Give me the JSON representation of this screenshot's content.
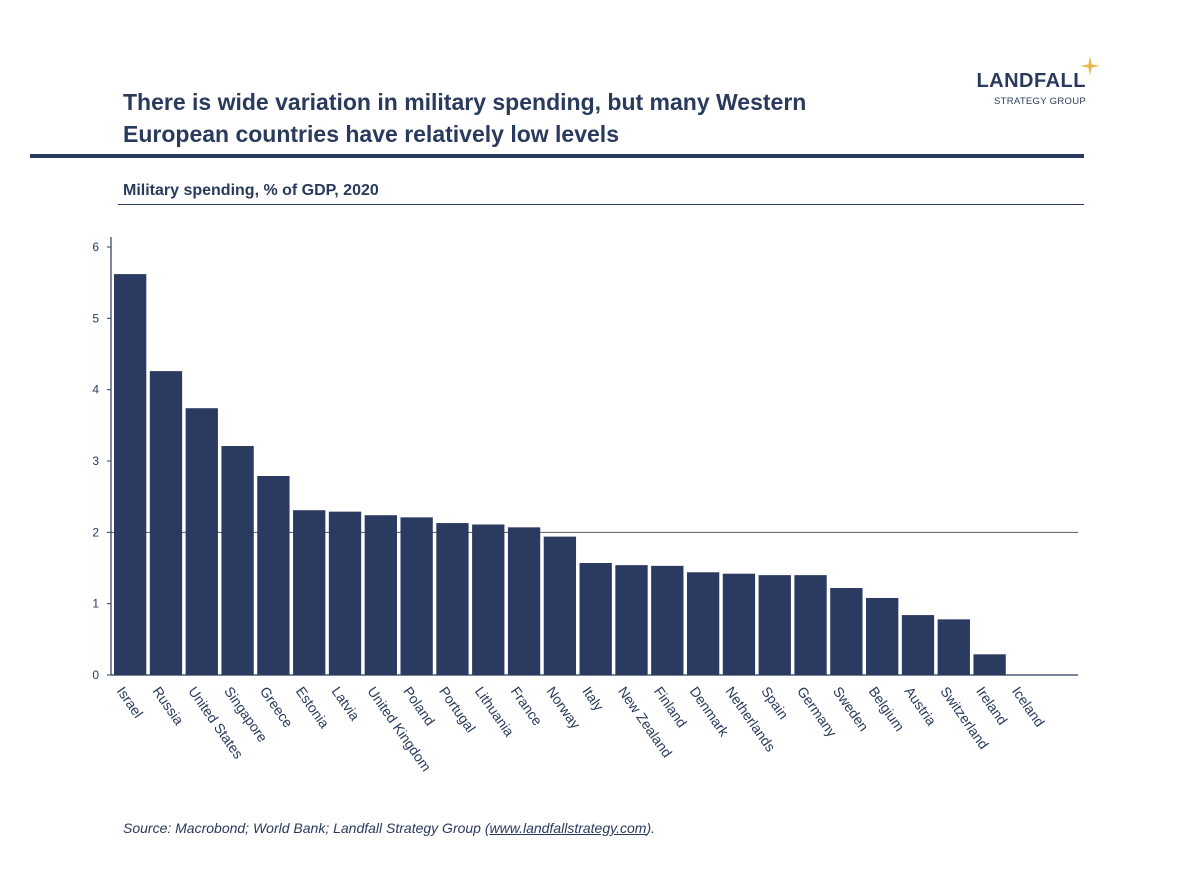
{
  "header": {
    "title": "There is wide variation in military spending, but many Western European countries have relatively low levels",
    "logo_main": "LANDFALL",
    "logo_sub": "STRATEGY GROUP"
  },
  "colors": {
    "bar": "#2b3a61",
    "text": "#2a3a5c",
    "accent_star": "#e8b84a"
  },
  "chart_data": {
    "type": "bar",
    "title": "Military spending, % of GDP, 2020",
    "xlabel": "",
    "ylabel": "",
    "ylim": [
      0,
      6
    ],
    "yticks": [
      "0",
      "1",
      "2",
      "3",
      "4",
      "5",
      "6"
    ],
    "reference_line": 2,
    "grid": false,
    "categories": [
      "Israel",
      "Russia",
      "United States",
      "Singapore",
      "Greece",
      "Estonia",
      "Latvia",
      "United Kingdom",
      "Poland",
      "Portugal",
      "Lithuania",
      "France",
      "Norway",
      "Italy",
      "New Zealand",
      "Finland",
      "Denmark",
      "Netherlands",
      "Spain",
      "Germany",
      "Sweden",
      "Belgium",
      "Austria",
      "Switzerland",
      "Ireland",
      "Iceland"
    ],
    "values": [
      5.62,
      4.26,
      3.74,
      3.21,
      2.79,
      2.31,
      2.29,
      2.24,
      2.21,
      2.13,
      2.11,
      2.07,
      1.94,
      1.57,
      1.54,
      1.53,
      1.44,
      1.42,
      1.4,
      1.4,
      1.22,
      1.08,
      0.84,
      0.78,
      0.29,
      0.0
    ]
  },
  "footer": {
    "source_prefix": "Source: Macrobond; World Bank; Landfall Strategy Group (",
    "source_link": "www.landfallstrategy.com",
    "source_suffix": ")."
  }
}
